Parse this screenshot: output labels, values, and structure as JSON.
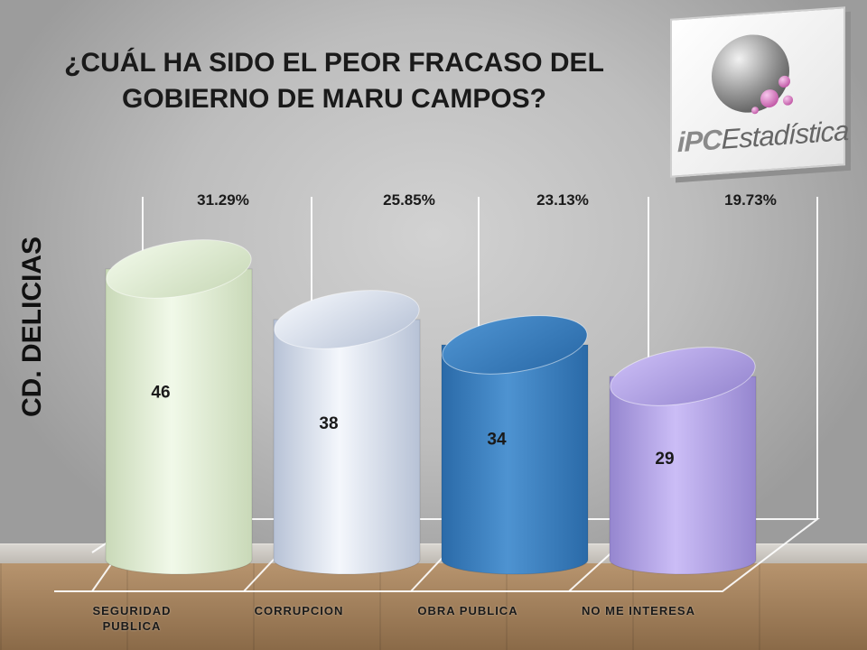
{
  "title": "¿CUÁL HA SIDO EL PEOR FRACASO DEL GOBIERNO DE MARU CAMPOS?",
  "side_label": "CD. DELICIAS",
  "logo": {
    "part1": "iPC",
    "part2": "Estadística"
  },
  "colors": {
    "bar_fills": [
      [
        "#f1f9e9",
        "#c9d9b8"
      ],
      [
        "#f4f7fc",
        "#b7c2d6"
      ],
      [
        "#4e93d1",
        "#2a6aa8"
      ],
      [
        "#cbbdf6",
        "#9586cf"
      ]
    ],
    "label_color": "#1a1a1a"
  },
  "chart_data": {
    "type": "bar",
    "title": "¿CUÁL HA SIDO EL PEOR FRACASO DEL GOBIERNO DE MARU CAMPOS?",
    "categories": [
      "SEGURIDAD PUBLICA",
      "CORRUPCION",
      "OBRA PUBLICA",
      "NO ME INTERESA"
    ],
    "values": [
      46,
      38,
      34,
      29
    ],
    "percent_labels": [
      "31.29%",
      "25.85%",
      "23.13%",
      "19.73%"
    ],
    "ylabel": "CD. DELICIAS",
    "ylim": [
      0,
      56
    ],
    "grid": false,
    "legend": "none"
  }
}
